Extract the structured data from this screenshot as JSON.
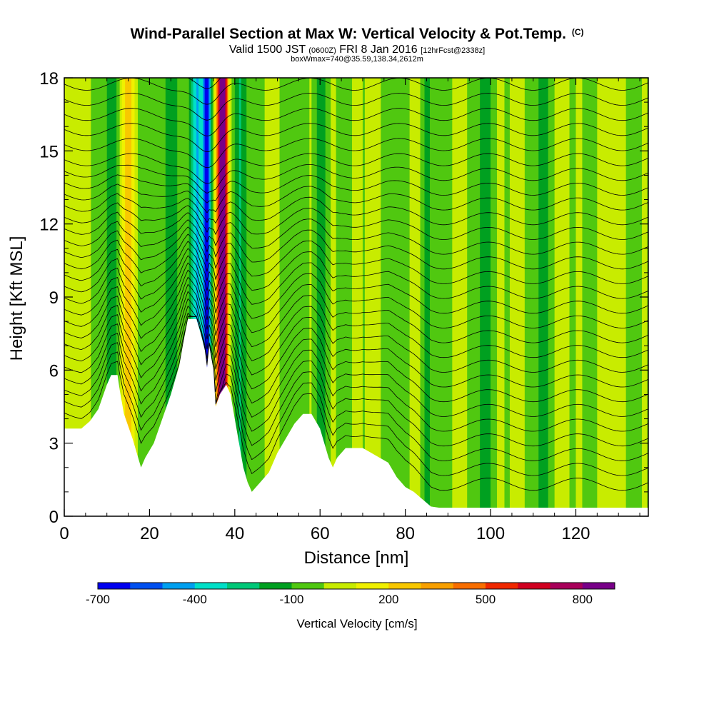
{
  "header": {
    "title": "Wind-Parallel Section at Max W: Vertical Velocity & Pot.Temp.",
    "copyright": "(C)",
    "valid_main": "Valid 1500 JST",
    "valid_zulu": "(0600Z)",
    "valid_date": "FRI 8 Jan 2016",
    "forecast": "[12hrFcst@2338z]",
    "box_info": "boxWmax=740@35.59,138.34,2612m"
  },
  "chart_data": {
    "type": "heatmap",
    "xlabel": "Distance [nm]",
    "ylabel": "Height [Kft MSL]",
    "xlim": [
      0,
      137
    ],
    "ylim": [
      0,
      18
    ],
    "x_ticks": [
      0,
      20,
      40,
      60,
      80,
      100,
      120
    ],
    "y_ticks": [
      0,
      3,
      6,
      9,
      12,
      15,
      18
    ],
    "colorbar": {
      "label": "Vertical Velocity [cm/s]",
      "tick_labels": [
        -700,
        -400,
        -100,
        200,
        500,
        800
      ],
      "levels": [
        -700,
        -600,
        -500,
        -400,
        -300,
        -200,
        -100,
        0,
        100,
        200,
        300,
        400,
        500,
        600,
        700,
        800,
        900
      ],
      "colors": [
        "#0000f0",
        "#0050f0",
        "#00a0f0",
        "#00e0c8",
        "#00c878",
        "#00a020",
        "#50c810",
        "#c8ec00",
        "#f0f000",
        "#f8c800",
        "#f8a000",
        "#f86e00",
        "#f02800",
        "#d00020",
        "#a8005a",
        "#780088"
      ]
    },
    "terrain_kft": [
      [
        0,
        3.6
      ],
      [
        4,
        3.6
      ],
      [
        6,
        3.9
      ],
      [
        8,
        4.4
      ],
      [
        10,
        5.4
      ],
      [
        11,
        5.8
      ],
      [
        12.5,
        5.8
      ],
      [
        13,
        5.2
      ],
      [
        14,
        4.2
      ],
      [
        16,
        3.2
      ],
      [
        17,
        2.6
      ],
      [
        18,
        2.0
      ],
      [
        19,
        2.4
      ],
      [
        21,
        3.0
      ],
      [
        23,
        4.0
      ],
      [
        25,
        5.0
      ],
      [
        26,
        5.6
      ],
      [
        27,
        6.2
      ],
      [
        28,
        7.2
      ],
      [
        29,
        8.1
      ],
      [
        31,
        8.1
      ],
      [
        32,
        7.5
      ],
      [
        33,
        6.8
      ],
      [
        33.5,
        6.1
      ],
      [
        34,
        7.0
      ],
      [
        35,
        6.0
      ],
      [
        35.5,
        4.5
      ],
      [
        36.5,
        5.0
      ],
      [
        38,
        5.4
      ],
      [
        39,
        5.0
      ],
      [
        40,
        4.0
      ],
      [
        41,
        3.0
      ],
      [
        42,
        2.0
      ],
      [
        43,
        1.4
      ],
      [
        44,
        1.0
      ],
      [
        46,
        1.4
      ],
      [
        48,
        1.8
      ],
      [
        50,
        2.6
      ],
      [
        52,
        3.2
      ],
      [
        54,
        3.8
      ],
      [
        56,
        4.2
      ],
      [
        58,
        4.2
      ],
      [
        60,
        3.6
      ],
      [
        61,
        3.0
      ],
      [
        62,
        2.4
      ],
      [
        63,
        2.0
      ],
      [
        64,
        2.4
      ],
      [
        66,
        2.8
      ],
      [
        70,
        2.8
      ],
      [
        72,
        2.6
      ],
      [
        74,
        2.4
      ],
      [
        76,
        2.2
      ],
      [
        78,
        1.6
      ],
      [
        80,
        1.2
      ],
      [
        82,
        1.0
      ],
      [
        84,
        0.7
      ],
      [
        86,
        0.4
      ],
      [
        88,
        0.35
      ],
      [
        137,
        0.35
      ]
    ],
    "velocity_features": [
      {
        "x": 15,
        "value": 250
      },
      {
        "x": 31,
        "value": -400
      },
      {
        "x": 33.5,
        "value": -700
      },
      {
        "x": 36.5,
        "value": 600
      },
      {
        "x": 37.5,
        "value": 740
      },
      {
        "x": 11,
        "value": -150
      },
      {
        "x": 25,
        "value": -150
      },
      {
        "x": 41,
        "value": -200
      },
      {
        "x": 60,
        "value": -150
      },
      {
        "x": 85,
        "value": -120
      },
      {
        "x": 98,
        "value": -150
      },
      {
        "x": 112,
        "value": -120
      }
    ],
    "max_w": 740
  }
}
